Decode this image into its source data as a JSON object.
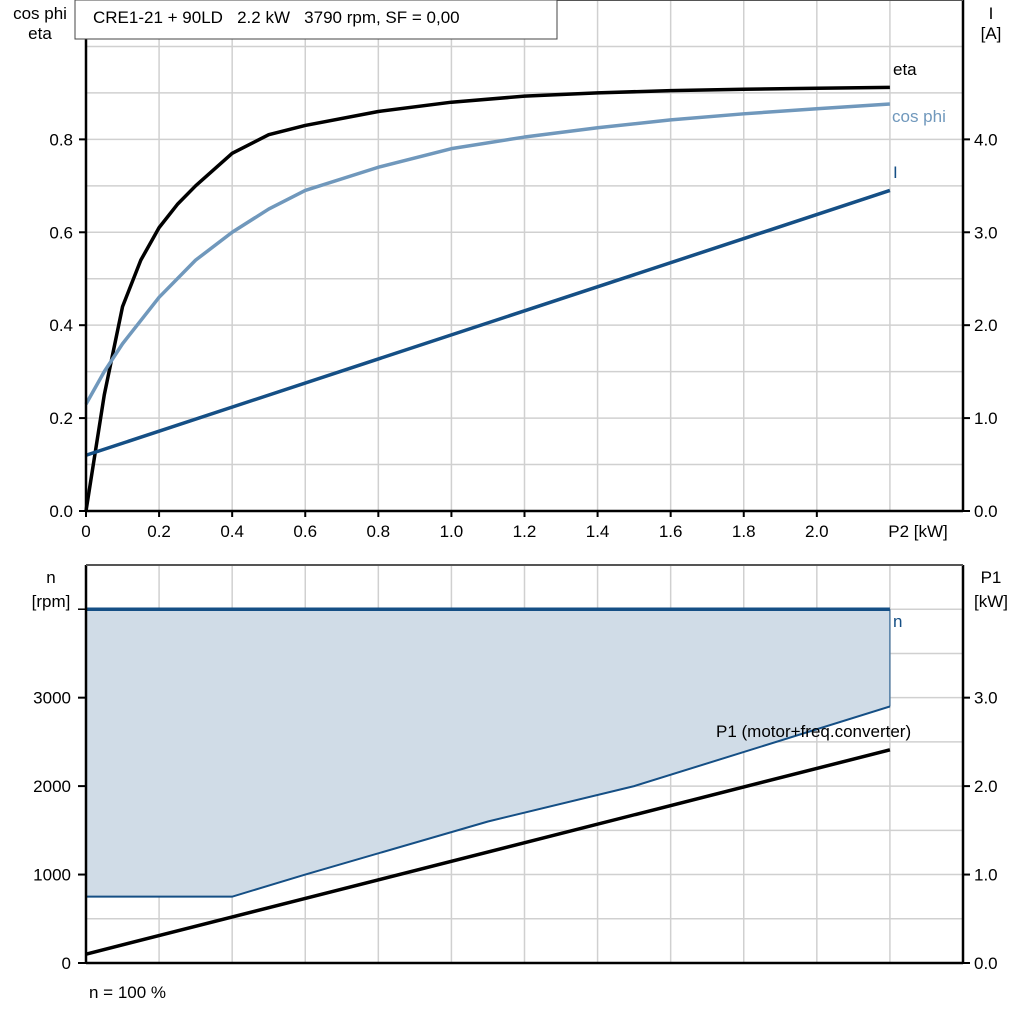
{
  "chart_data": [
    {
      "type": "line",
      "title": "CRE1-21 + 90LD   2.2 kW   3790 rpm, SF = 0,00",
      "xlabel": "P2 [kW]",
      "ylabel_left": [
        "cos phi",
        "eta"
      ],
      "ylabel_right": [
        "I",
        "[A]"
      ],
      "xlim": [
        0,
        2.4
      ],
      "ylim_left": [
        0,
        1.1
      ],
      "ylim_right": [
        0,
        5.5
      ],
      "x_ticks": [
        "0",
        "0.2",
        "0.4",
        "0.6",
        "0.8",
        "1.0",
        "1.2",
        "1.4",
        "1.6",
        "1.8",
        "2.0"
      ],
      "y_ticks_left": [
        "0.0",
        "0.2",
        "0.4",
        "0.6",
        "0.8"
      ],
      "y_ticks_right": [
        "0.0",
        "1.0",
        "2.0",
        "3.0",
        "4.0"
      ],
      "grid": true,
      "series": [
        {
          "name": "eta",
          "axis": "left",
          "color": "#000000",
          "x": [
            0,
            0.05,
            0.1,
            0.15,
            0.2,
            0.25,
            0.3,
            0.4,
            0.5,
            0.6,
            0.8,
            1.0,
            1.2,
            1.4,
            1.6,
            1.8,
            2.0,
            2.2
          ],
          "y": [
            0,
            0.25,
            0.44,
            0.54,
            0.61,
            0.66,
            0.7,
            0.77,
            0.81,
            0.83,
            0.86,
            0.88,
            0.893,
            0.9,
            0.905,
            0.908,
            0.91,
            0.912
          ]
        },
        {
          "name": "cos phi",
          "axis": "left",
          "color": "#7098BC",
          "x": [
            0,
            0.05,
            0.1,
            0.2,
            0.3,
            0.4,
            0.5,
            0.6,
            0.8,
            1.0,
            1.2,
            1.4,
            1.6,
            1.8,
            2.0,
            2.2
          ],
          "y": [
            0.23,
            0.3,
            0.36,
            0.46,
            0.54,
            0.6,
            0.65,
            0.69,
            0.74,
            0.78,
            0.805,
            0.825,
            0.842,
            0.855,
            0.866,
            0.876
          ]
        },
        {
          "name": "I",
          "axis": "right",
          "color": "#154F85",
          "x": [
            0,
            2.2
          ],
          "y": [
            0.6,
            3.45
          ]
        }
      ]
    },
    {
      "type": "area",
      "footer": "n = 100 %",
      "xlim": [
        0,
        2.4
      ],
      "ylabel_left": [
        "n",
        "[rpm]"
      ],
      "ylabel_right": [
        "P1",
        "[kW]"
      ],
      "ylim_left": [
        0,
        4500
      ],
      "ylim_right": [
        0,
        4.5
      ],
      "y_ticks_left": [
        "0",
        "1000",
        "2000",
        "3000"
      ],
      "y_ticks_right": [
        "0.0",
        "1.0",
        "2.0",
        "3.0"
      ],
      "grid": true,
      "fill_color": "#D0DCE7",
      "series": [
        {
          "name": "n",
          "axis": "left",
          "color": "#154F85",
          "x": [
            0,
            2.2
          ],
          "y": [
            4000,
            4000
          ]
        },
        {
          "axis": "left",
          "color": "#154F85",
          "x": [
            0,
            0.4,
            0.6,
            1.1,
            1.5,
            2.2
          ],
          "y": [
            750,
            750,
            1000,
            1600,
            2000,
            2900
          ]
        },
        {
          "name": "P1 (motor+freq.converter)",
          "axis": "right",
          "color": "#000000",
          "x": [
            0,
            2.2
          ],
          "y": [
            0.1,
            2.41
          ]
        }
      ]
    }
  ]
}
